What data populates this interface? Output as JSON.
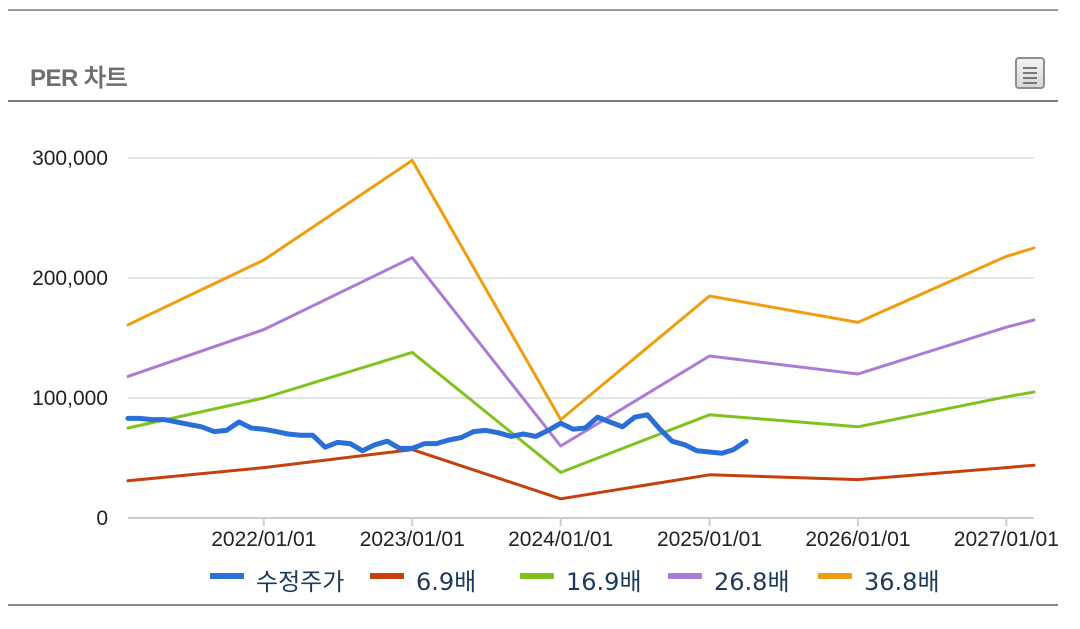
{
  "panel": {
    "title": "PER 차트",
    "menu_icon": "hamburger-menu-icon"
  },
  "chart_data": {
    "type": "line",
    "title": "",
    "xlabel": "",
    "ylabel": "",
    "xlim": [
      "2021-02-01",
      "2027-03-10"
    ],
    "ylim": [
      0,
      300000
    ],
    "y_ticks": [
      "0",
      "100,000",
      "200,000",
      "300,000"
    ],
    "x_ticks": [
      "2022/01/01",
      "2023/01/01",
      "2024/01/01",
      "2025/01/01",
      "2026/01/01",
      "2027/01/01"
    ],
    "grid": true,
    "legend_position": "bottom",
    "series": [
      {
        "name": "수정주가",
        "color": "#2a6fd8",
        "width": 5,
        "points": [
          [
            "2021-02-01",
            83000
          ],
          [
            "2021-03-01",
            83000
          ],
          [
            "2021-04-01",
            82000
          ],
          [
            "2021-05-01",
            82000
          ],
          [
            "2021-06-01",
            80000
          ],
          [
            "2021-07-01",
            78000
          ],
          [
            "2021-08-01",
            76000
          ],
          [
            "2021-09-01",
            72000
          ],
          [
            "2021-10-01",
            73000
          ],
          [
            "2021-11-01",
            80000
          ],
          [
            "2021-12-01",
            75000
          ],
          [
            "2022-01-01",
            74000
          ],
          [
            "2022-02-01",
            72000
          ],
          [
            "2022-03-01",
            70000
          ],
          [
            "2022-04-01",
            69000
          ],
          [
            "2022-05-01",
            69000
          ],
          [
            "2022-06-01",
            59000
          ],
          [
            "2022-07-01",
            63000
          ],
          [
            "2022-08-01",
            62000
          ],
          [
            "2022-09-01",
            56000
          ],
          [
            "2022-10-01",
            61000
          ],
          [
            "2022-11-01",
            64000
          ],
          [
            "2022-12-01",
            58000
          ],
          [
            "2023-01-01",
            58000
          ],
          [
            "2023-02-01",
            62000
          ],
          [
            "2023-03-01",
            62000
          ],
          [
            "2023-04-01",
            65000
          ],
          [
            "2023-05-01",
            67000
          ],
          [
            "2023-06-01",
            72000
          ],
          [
            "2023-07-01",
            73000
          ],
          [
            "2023-08-01",
            71000
          ],
          [
            "2023-09-01",
            68000
          ],
          [
            "2023-10-01",
            70000
          ],
          [
            "2023-11-01",
            68000
          ],
          [
            "2023-12-01",
            73000
          ],
          [
            "2024-01-01",
            79000
          ],
          [
            "2024-02-01",
            74000
          ],
          [
            "2024-03-01",
            75000
          ],
          [
            "2024-04-01",
            84000
          ],
          [
            "2024-05-01",
            80000
          ],
          [
            "2024-06-01",
            76000
          ],
          [
            "2024-07-01",
            84000
          ],
          [
            "2024-08-01",
            86000
          ],
          [
            "2024-09-01",
            74000
          ],
          [
            "2024-10-01",
            64000
          ],
          [
            "2024-11-01",
            61000
          ],
          [
            "2024-12-01",
            56000
          ],
          [
            "2025-01-01",
            55000
          ],
          [
            "2025-02-01",
            54000
          ],
          [
            "2025-03-01",
            57000
          ],
          [
            "2025-04-01",
            64000
          ]
        ]
      },
      {
        "name": "6.9배",
        "color": "#c5400d",
        "width": 3,
        "points": [
          [
            "2021-02-01",
            31000
          ],
          [
            "2022-01-01",
            42000
          ],
          [
            "2023-01-01",
            57000
          ],
          [
            "2024-01-01",
            16000
          ],
          [
            "2025-01-01",
            36000
          ],
          [
            "2026-01-01",
            32000
          ],
          [
            "2027-01-01",
            42000
          ],
          [
            "2027-03-10",
            44000
          ]
        ]
      },
      {
        "name": "16.9배",
        "color": "#80c31e",
        "width": 3,
        "points": [
          [
            "2021-02-01",
            75000
          ],
          [
            "2022-01-01",
            100000
          ],
          [
            "2023-01-01",
            138000
          ],
          [
            "2024-01-01",
            38000
          ],
          [
            "2025-01-01",
            86000
          ],
          [
            "2026-01-01",
            76000
          ],
          [
            "2027-01-01",
            101000
          ],
          [
            "2027-03-10",
            105000
          ]
        ]
      },
      {
        "name": "26.8배",
        "color": "#ac7bd6",
        "width": 3,
        "points": [
          [
            "2021-02-01",
            118000
          ],
          [
            "2022-01-01",
            157000
          ],
          [
            "2023-01-01",
            217000
          ],
          [
            "2024-01-01",
            60000
          ],
          [
            "2025-01-01",
            135000
          ],
          [
            "2026-01-01",
            120000
          ],
          [
            "2027-01-01",
            159000
          ],
          [
            "2027-03-10",
            165000
          ]
        ]
      },
      {
        "name": "36.8배",
        "color": "#f09d0f",
        "width": 3,
        "points": [
          [
            "2021-02-01",
            161000
          ],
          [
            "2022-01-01",
            215000
          ],
          [
            "2023-01-01",
            298000
          ],
          [
            "2024-01-01",
            82000
          ],
          [
            "2025-01-01",
            185000
          ],
          [
            "2026-01-01",
            163000
          ],
          [
            "2027-01-01",
            218000
          ],
          [
            "2027-03-10",
            225000
          ]
        ]
      }
    ]
  }
}
